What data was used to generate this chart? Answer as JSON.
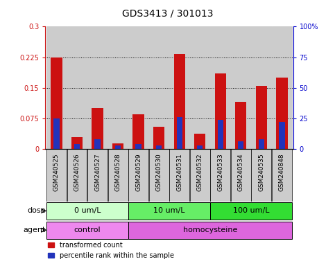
{
  "title": "GDS3413 / 301013",
  "samples": [
    "GSM240525",
    "GSM240526",
    "GSM240527",
    "GSM240528",
    "GSM240529",
    "GSM240530",
    "GSM240531",
    "GSM240532",
    "GSM240533",
    "GSM240534",
    "GSM240535",
    "GSM240848"
  ],
  "red_values": [
    0.225,
    0.028,
    0.1,
    0.013,
    0.085,
    0.055,
    0.232,
    0.038,
    0.185,
    0.115,
    0.155,
    0.175
  ],
  "blue_percentile": [
    25,
    4,
    8,
    3,
    4,
    3,
    26,
    3,
    24,
    6,
    8,
    22
  ],
  "ylim_left": [
    0,
    0.3
  ],
  "ylim_right": [
    0,
    100
  ],
  "yticks_left": [
    0,
    0.075,
    0.15,
    0.225,
    0.3
  ],
  "yticks_right": [
    0,
    25,
    50,
    75,
    100
  ],
  "ytick_labels_left": [
    "0",
    "0.075",
    "0.15",
    "0.225",
    "0.3"
  ],
  "ytick_labels_right": [
    "0",
    "25",
    "50",
    "75",
    "100%"
  ],
  "dose_groups": [
    {
      "label": "0 um/L",
      "start": 0,
      "end": 4,
      "color": "#ccffcc"
    },
    {
      "label": "10 um/L",
      "start": 4,
      "end": 8,
      "color": "#66ee66"
    },
    {
      "label": "100 um/L",
      "start": 8,
      "end": 12,
      "color": "#33dd33"
    }
  ],
  "agent_groups": [
    {
      "label": "control",
      "start": 0,
      "end": 4,
      "color": "#ee88ee"
    },
    {
      "label": "homocysteine",
      "start": 4,
      "end": 12,
      "color": "#dd66dd"
    }
  ],
  "dose_label": "dose",
  "agent_label": "agent",
  "red_color": "#cc1111",
  "blue_color": "#2233bb",
  "bar_bg_color": "#cccccc",
  "legend_red": "transformed count",
  "legend_blue": "percentile rank within the sample",
  "title_fontsize": 10,
  "tick_fontsize": 7,
  "label_fontsize": 8,
  "annot_fontsize": 8
}
